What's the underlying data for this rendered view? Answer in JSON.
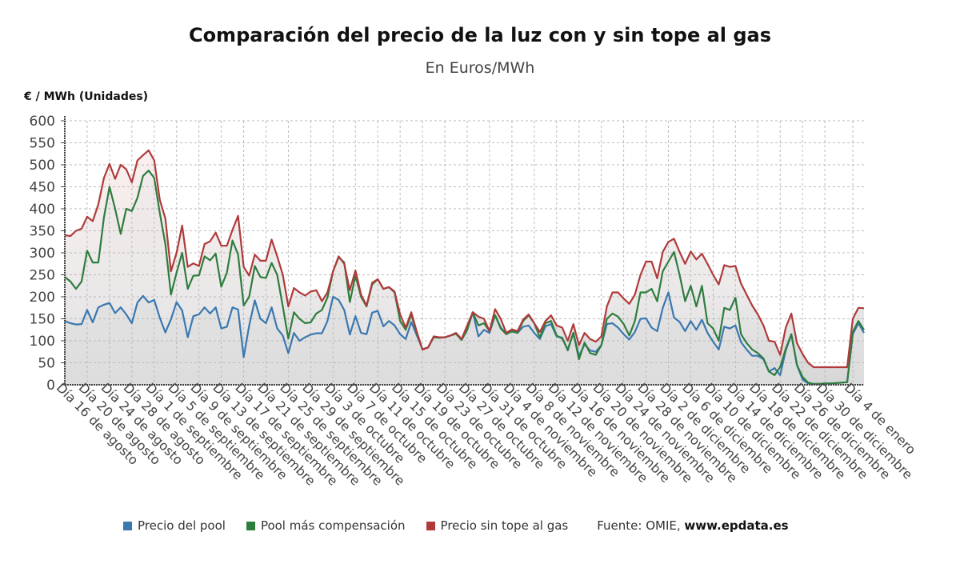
{
  "chart_data": {
    "type": "line",
    "title": "Comparación del precio de la luz con y sin tope al gas",
    "subtitle": "En Euros/MWh",
    "ylabel": "€ / MWh (Unidades)",
    "xlabel": "",
    "ylim": [
      0,
      600
    ],
    "yticks": [
      0,
      50,
      100,
      150,
      200,
      250,
      300,
      350,
      400,
      450,
      500,
      550,
      600
    ],
    "grid": true,
    "legend_position": "bottom",
    "x_start_label": "Día 16 de agosto",
    "x_tick_labels": [
      "Día 16 de agosto",
      "Día 20 de agosto",
      "Día 24 de agosto",
      "Día 28 de agosto",
      "Día 1 de septiembre",
      "Día 5 de septiembre",
      "Día 9 de septiembre",
      "Día 13 de septiembre",
      "Día 17 de septiembre",
      "Día 21 de septiembre",
      "Día 25 de septiembre",
      "Día 29 de septiembre",
      "Día 3 de octubre",
      "Día 7 de octubre",
      "Día 11 de octubre",
      "Día 15 de octubre",
      "Día 19 de octubre",
      "Día 23 de octubre",
      "Día 27 de octubre",
      "Día 31 de octubre",
      "Día 4 de noviembre",
      "Día 8 de noviembre",
      "Día 12 de noviembre",
      "Día 16 de noviembre",
      "Día 20 de noviembre",
      "Día 24 de noviembre",
      "Día 28 de noviembre",
      "Día 2 de diciembre",
      "Día 6 de diciembre",
      "Día 10 de diciembre",
      "Día 14 de diciembre",
      "Día 18 de diciembre",
      "Día 22 de diciembre",
      "Día 26 de diciembre",
      "Día 30 de diciembre",
      "Día 4 de enero"
    ],
    "x_tick_day_index": [
      0,
      4,
      8,
      12,
      16,
      20,
      24,
      28,
      32,
      36,
      40,
      44,
      48,
      52,
      56,
      60,
      64,
      68,
      72,
      76,
      80,
      84,
      88,
      92,
      96,
      100,
      104,
      108,
      112,
      116,
      120,
      124,
      128,
      132,
      136,
      141
    ],
    "series": [
      {
        "name": "Precio del pool",
        "color": "#3a78b0",
        "values": [
          145,
          140,
          137,
          138,
          170,
          142,
          176,
          182,
          186,
          163,
          176,
          160,
          140,
          187,
          202,
          187,
          193,
          152,
          119,
          149,
          188,
          169,
          108,
          156,
          160,
          176,
          162,
          176,
          128,
          132,
          176,
          171,
          63,
          135,
          192,
          150,
          140,
          176,
          128,
          112,
          72,
          118,
          100,
          108,
          114,
          117,
          117,
          145,
          200,
          193,
          170,
          114,
          156,
          118,
          115,
          164,
          168,
          133,
          145,
          135,
          115,
          104,
          143,
          112,
          81,
          85,
          108,
          107,
          108,
          112,
          116,
          102,
          125,
          165,
          110,
          125,
          118,
          158,
          130,
          117,
          121,
          118,
          132,
          135,
          118,
          104,
          133,
          138,
          110,
          107,
          78,
          118,
          65,
          92,
          78,
          75,
          90,
          138,
          140,
          130,
          115,
          103,
          120,
          150,
          151,
          130,
          122,
          175,
          210,
          153,
          143,
          122,
          145,
          125,
          148,
          118,
          98,
          80,
          132,
          128,
          135,
          97,
          80,
          66,
          66,
          58,
          30,
          38,
          22,
          78,
          115,
          45,
          12,
          3,
          2,
          2,
          3,
          3,
          4,
          5,
          6,
          115,
          140,
          118
        ]
      },
      {
        "name": "Pool más compensación",
        "color": "#2e7d3e",
        "values": [
          245,
          235,
          218,
          235,
          305,
          278,
          278,
          380,
          450,
          400,
          343,
          400,
          395,
          425,
          475,
          487,
          470,
          390,
          320,
          205,
          255,
          300,
          218,
          248,
          249,
          292,
          283,
          298,
          223,
          255,
          328,
          296,
          180,
          200,
          270,
          245,
          243,
          277,
          250,
          178,
          105,
          165,
          150,
          140,
          142,
          162,
          170,
          198,
          258,
          290,
          278,
          188,
          248,
          200,
          178,
          228,
          240,
          218,
          222,
          210,
          145,
          125,
          160,
          117,
          80,
          85,
          108,
          107,
          108,
          112,
          116,
          102,
          125,
          165,
          135,
          140,
          122,
          158,
          128,
          115,
          122,
          118,
          145,
          158,
          140,
          108,
          140,
          145,
          112,
          105,
          80,
          118,
          58,
          96,
          72,
          68,
          90,
          150,
          162,
          155,
          138,
          112,
          145,
          210,
          210,
          218,
          190,
          258,
          280,
          302,
          250,
          190,
          225,
          178,
          225,
          140,
          128,
          100,
          175,
          170,
          198,
          115,
          95,
          80,
          72,
          60,
          30,
          22,
          40,
          82,
          115,
          45,
          18,
          5,
          2,
          2,
          3,
          3,
          4,
          5,
          6,
          120,
          145,
          125
        ]
      },
      {
        "name": "Precio sin tope al gas",
        "color": "#b03a3a",
        "values": [
          340,
          338,
          350,
          355,
          382,
          372,
          410,
          470,
          502,
          468,
          500,
          490,
          460,
          510,
          522,
          533,
          510,
          420,
          378,
          258,
          300,
          362,
          268,
          276,
          270,
          320,
          326,
          346,
          316,
          316,
          352,
          384,
          268,
          248,
          296,
          282,
          282,
          330,
          292,
          250,
          178,
          220,
          210,
          203,
          212,
          215,
          190,
          210,
          258,
          292,
          275,
          215,
          260,
          205,
          180,
          232,
          240,
          218,
          222,
          212,
          160,
          130,
          165,
          120,
          80,
          85,
          110,
          108,
          108,
          112,
          118,
          104,
          135,
          165,
          155,
          150,
          122,
          172,
          150,
          118,
          126,
          122,
          148,
          160,
          140,
          120,
          145,
          158,
          135,
          130,
          100,
          138,
          90,
          118,
          104,
          98,
          110,
          178,
          210,
          210,
          196,
          184,
          205,
          250,
          280,
          280,
          242,
          302,
          325,
          332,
          302,
          275,
          303,
          285,
          298,
          275,
          250,
          228,
          272,
          268,
          270,
          230,
          205,
          180,
          160,
          135,
          100,
          98,
          68,
          130,
          162,
          95,
          70,
          50,
          40,
          40,
          40,
          40,
          40,
          40,
          40,
          150,
          175,
          174
        ]
      }
    ],
    "source_label": "Fuente: OMIE, ",
    "source_site": "www.epdata.es"
  }
}
